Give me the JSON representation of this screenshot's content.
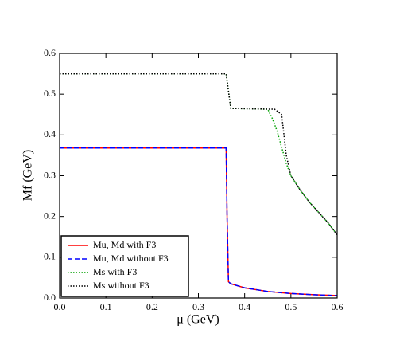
{
  "chart_data": {
    "type": "line",
    "xlabel": "μ (GeV)",
    "ylabel": "Mf (GeV)",
    "xlim": [
      0,
      0.6
    ],
    "ylim": [
      0,
      0.6
    ],
    "xticks": [
      {
        "value": 0,
        "label": "0.0"
      },
      0.1,
      0.2,
      0.3,
      0.4,
      0.5,
      0.6
    ],
    "yticks": [
      {
        "value": 0,
        "label": "0.0"
      },
      0.1,
      0.2,
      0.3,
      0.4,
      0.5,
      0.6
    ],
    "legend": "lower left",
    "series": [
      {
        "name": "Mu, Md with F3",
        "color": "#ff0000",
        "linestyle": "solid",
        "x": [
          0,
          0.36,
          0.362,
          0.365,
          0.37,
          0.4,
          0.45,
          0.5,
          0.55,
          0.6
        ],
        "values": [
          0.368,
          0.368,
          0.2,
          0.04,
          0.035,
          0.025,
          0.016,
          0.011,
          0.008,
          0.006
        ]
      },
      {
        "name": "Mu, Md without F3",
        "color": "#0000ff",
        "linestyle": "dashed",
        "x": [
          0,
          0.36,
          0.362,
          0.365,
          0.37,
          0.4,
          0.45,
          0.5,
          0.55,
          0.6
        ],
        "values": [
          0.368,
          0.368,
          0.2,
          0.04,
          0.035,
          0.025,
          0.016,
          0.011,
          0.008,
          0.006
        ]
      },
      {
        "name": "Ms with F3",
        "color": "#00a000",
        "linestyle": "dotted",
        "x": [
          0,
          0.36,
          0.37,
          0.45,
          0.46,
          0.47,
          0.48,
          0.49,
          0.5,
          0.52,
          0.54,
          0.56,
          0.58,
          0.6
        ],
        "values": [
          0.55,
          0.55,
          0.465,
          0.463,
          0.44,
          0.41,
          0.37,
          0.33,
          0.3,
          0.265,
          0.235,
          0.21,
          0.185,
          0.155
        ]
      },
      {
        "name": "Ms without F3",
        "color": "#000000",
        "linestyle": "dotted",
        "x": [
          0,
          0.36,
          0.37,
          0.465,
          0.48,
          0.485,
          0.49,
          0.5,
          0.52,
          0.54,
          0.56,
          0.58,
          0.6
        ],
        "values": [
          0.55,
          0.55,
          0.465,
          0.463,
          0.45,
          0.4,
          0.35,
          0.3,
          0.265,
          0.235,
          0.21,
          0.185,
          0.155
        ]
      }
    ]
  }
}
